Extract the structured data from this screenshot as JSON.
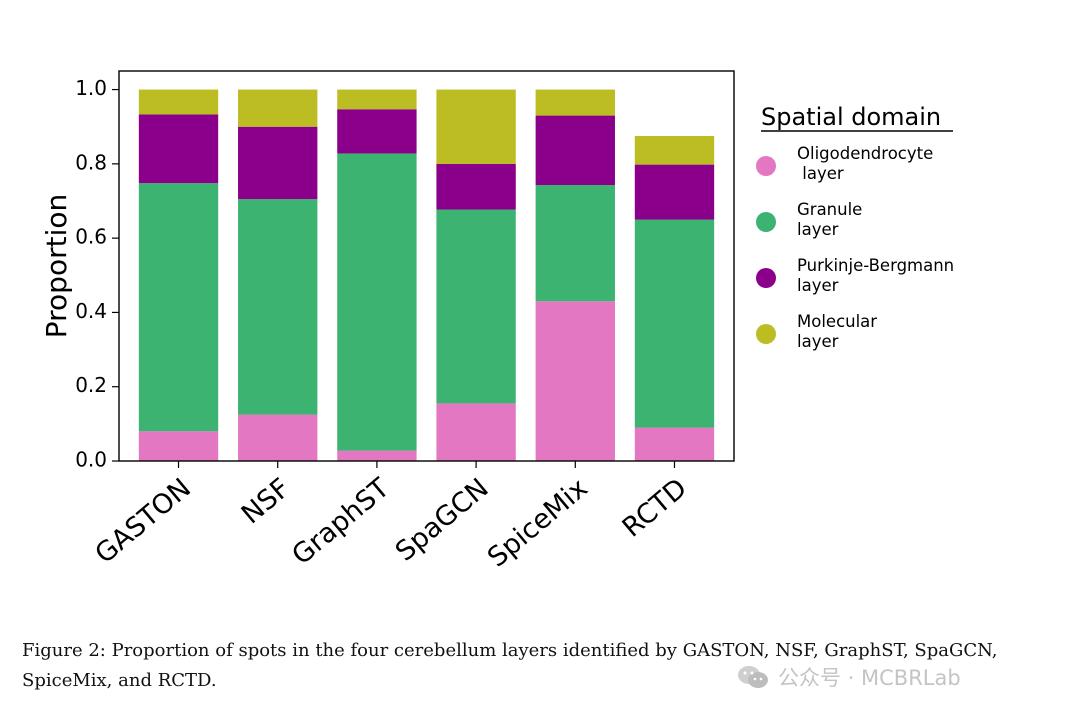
{
  "chart_data": {
    "type": "stacked-bar",
    "ylabel": "Proportion",
    "xlabel": "",
    "ylim": [
      0,
      1.05
    ],
    "yticks": [
      "0.0",
      "0.2",
      "0.4",
      "0.6",
      "0.8",
      "1.0"
    ],
    "categories": [
      "GASTON",
      "NSF",
      "GraphST",
      "SpaGCN",
      "SpiceMix",
      "RCTD"
    ],
    "series": [
      {
        "name": "Oligodendrocyte\n layer",
        "color": "#e377c2",
        "values": [
          0.08,
          0.125,
          0.028,
          0.155,
          0.43,
          0.09
        ]
      },
      {
        "name": "Granule\nlayer",
        "color": "#3cb371",
        "values": [
          0.668,
          0.58,
          0.8,
          0.522,
          0.313,
          0.56
        ]
      },
      {
        "name": "Purkinje-Bergmann\nlayer",
        "color": "#8b008b",
        "values": [
          0.185,
          0.195,
          0.119,
          0.123,
          0.187,
          0.148
        ]
      },
      {
        "name": "Molecular\nlayer",
        "color": "#bcbd22",
        "values": [
          0.067,
          0.1,
          0.053,
          0.2,
          0.07,
          0.077
        ]
      }
    ],
    "legend": {
      "title": "Spatial domain",
      "placement": "right"
    }
  },
  "caption": {
    "line1": "Figure 2: Proportion of spots in the four cerebellum layers identified by GASTON, NSF, GraphST, SpaGCN,",
    "line2": "SpiceMix, and RCTD."
  },
  "watermark": {
    "text": "公众号 · MCBRLab",
    "icon": "wechat-icon"
  }
}
